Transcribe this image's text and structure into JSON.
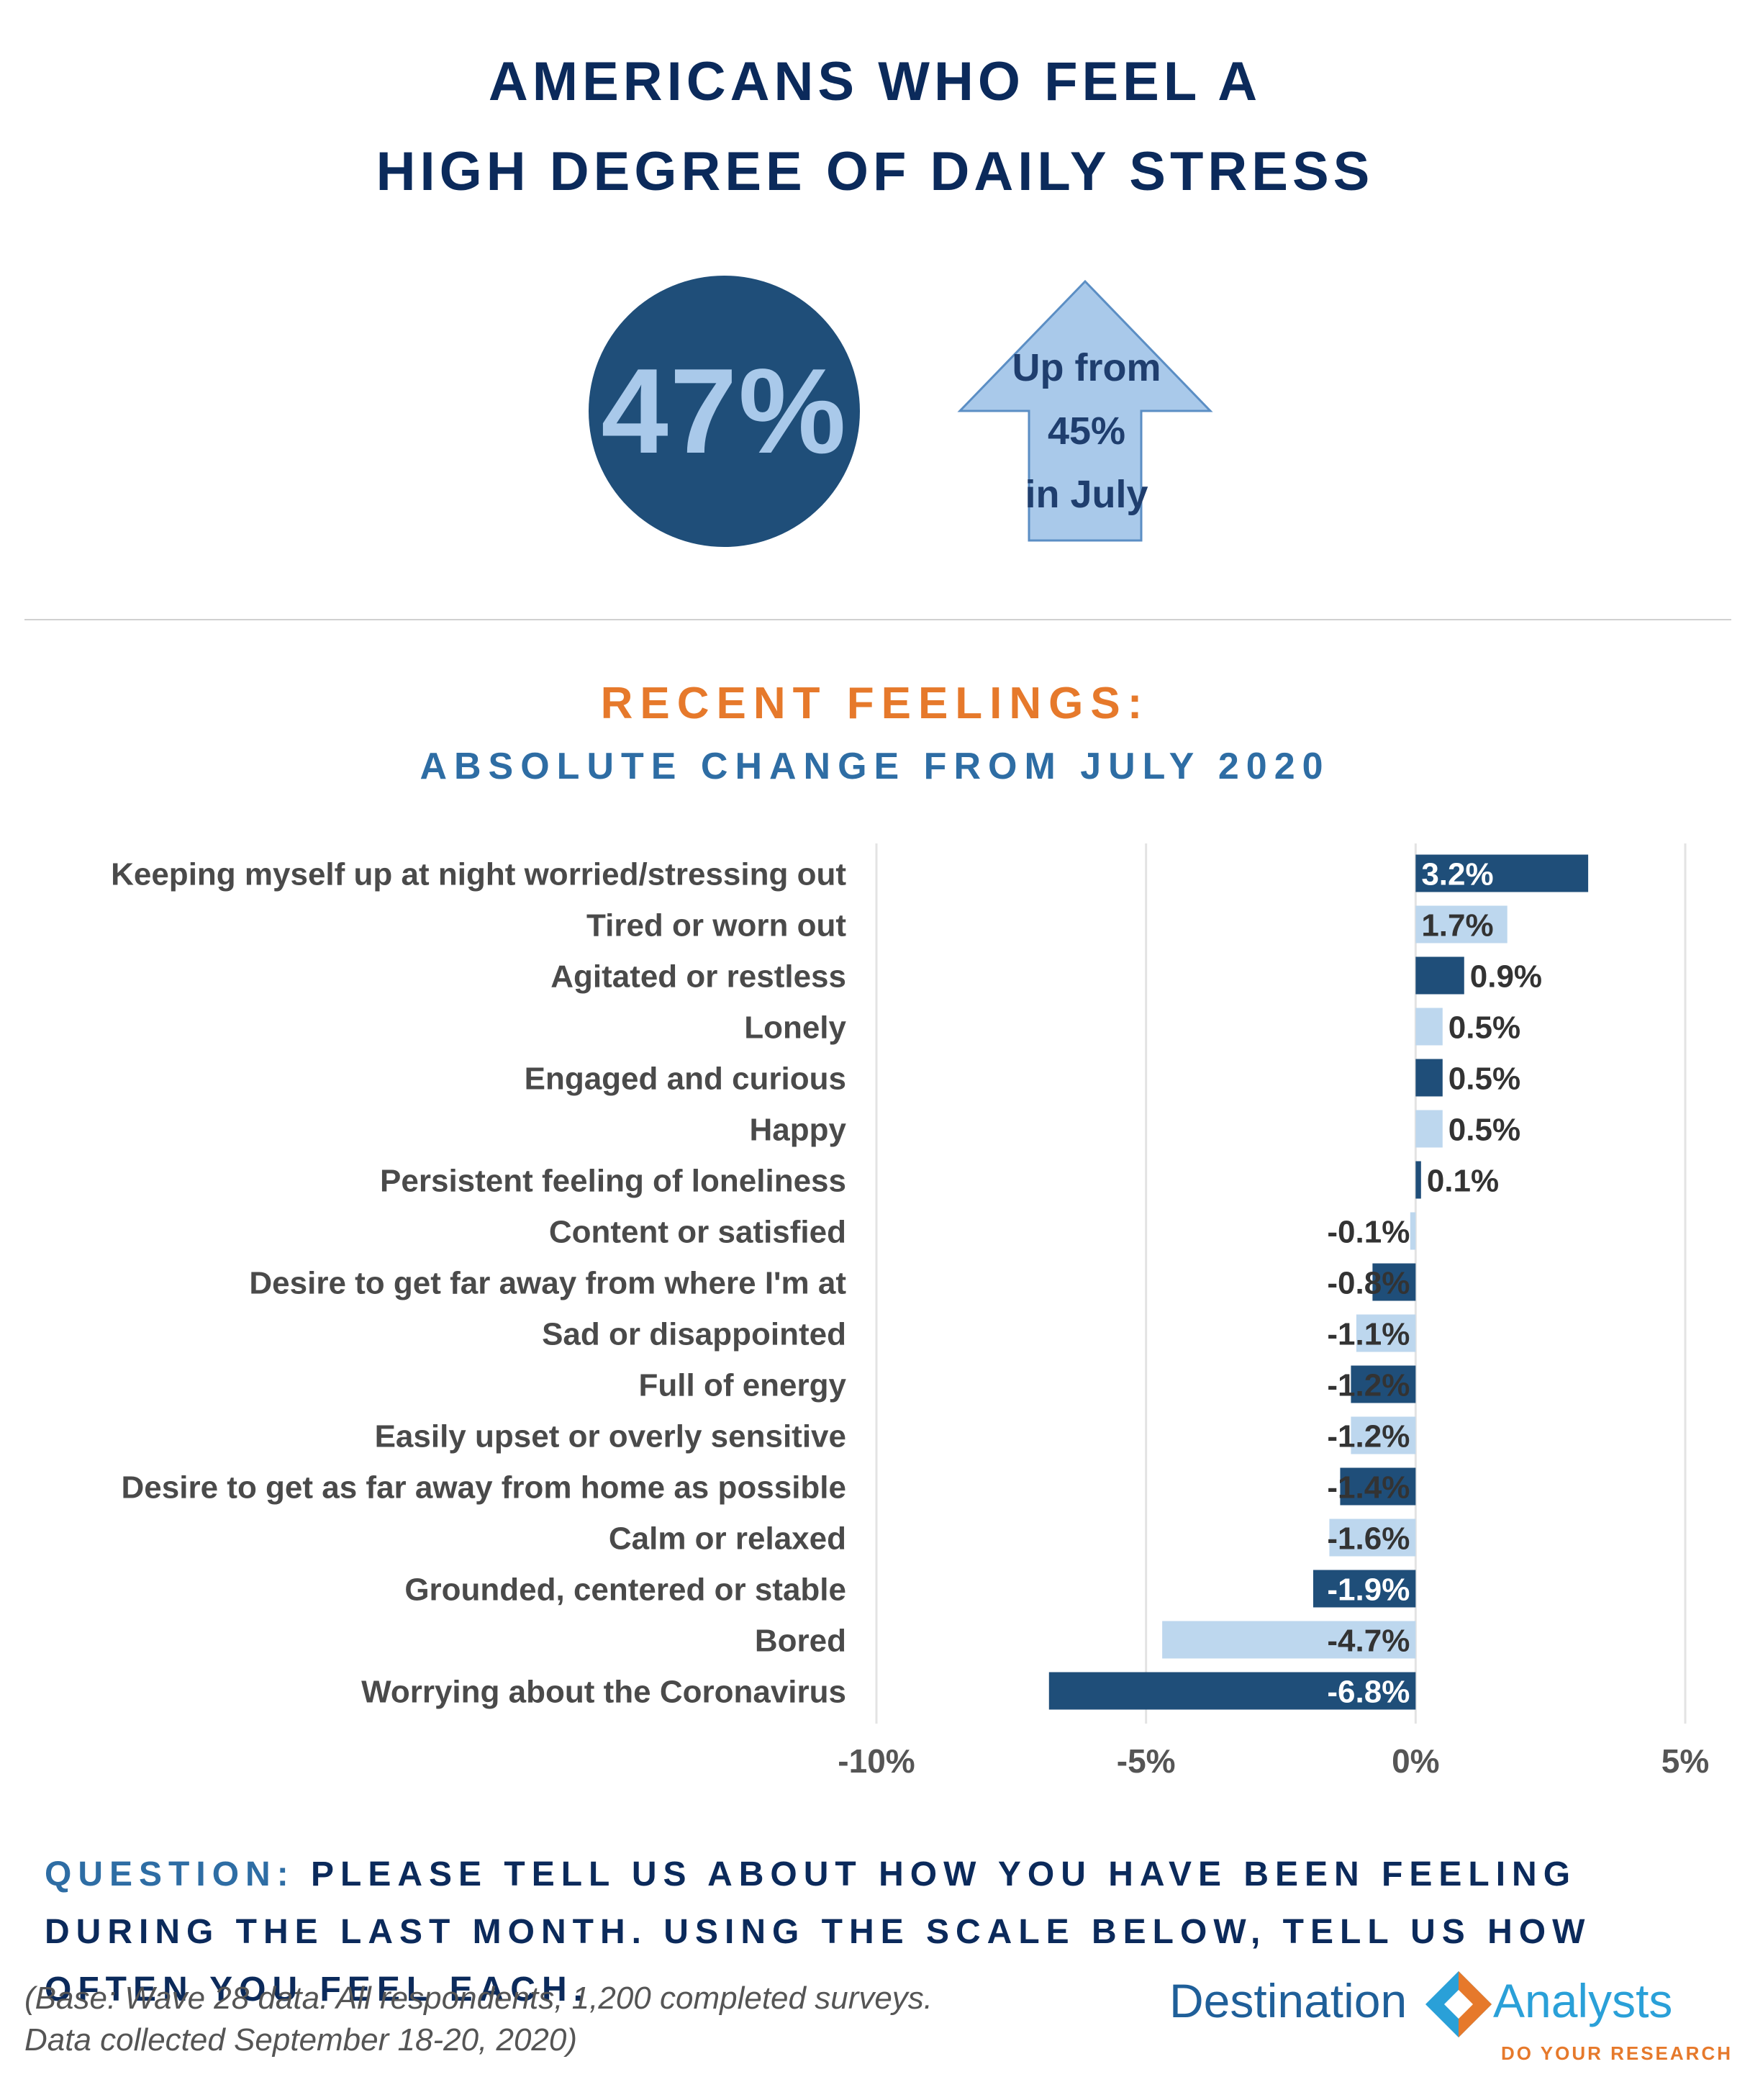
{
  "header": {
    "title_line1": "AMERICANS WHO FEEL A",
    "title_line2": "HIGH DEGREE OF DAILY STRESS"
  },
  "kpi": {
    "value": "47%",
    "arrow_line1": "Up from",
    "arrow_line2": "45%",
    "arrow_line3": "in July"
  },
  "section": {
    "heading": "RECENT FEELINGS:",
    "subheading": "ABSOLUTE CHANGE FROM JULY 2020"
  },
  "chart_data": {
    "type": "bar",
    "orientation": "horizontal",
    "categories": [
      "Keeping myself up at night worried/stressing out",
      "Tired or worn out",
      "Agitated or restless",
      "Lonely",
      "Engaged and curious",
      "Happy",
      "Persistent feeling of loneliness",
      "Content or satisfied",
      "Desire to get far away from where I'm at",
      "Sad or disappointed",
      "Full of energy",
      "Easily upset or overly sensitive",
      "Desire to get as far away from home as possible",
      "Calm or relaxed",
      "Grounded, centered or stable",
      "Bored",
      "Worrying about the Coronavirus"
    ],
    "values": [
      3.2,
      1.7,
      0.9,
      0.5,
      0.5,
      0.5,
      0.1,
      -0.1,
      -0.8,
      -1.1,
      -1.2,
      -1.2,
      -1.4,
      -1.6,
      -1.9,
      -4.7,
      -6.8
    ],
    "value_labels": [
      "3.2%",
      "1.7%",
      "0.9%",
      "0.5%",
      "0.5%",
      "0.5%",
      "0.1%",
      "-0.1%",
      "-0.8%",
      "-1.1%",
      "-1.2%",
      "-1.2%",
      "-1.4%",
      "-1.6%",
      "-1.9%",
      "-4.7%",
      "-6.8%"
    ],
    "xlim": [
      -10,
      5
    ],
    "xticks": [
      -10,
      -5,
      0,
      5
    ],
    "xtick_labels": [
      "-10%",
      "-5%",
      "0%",
      "5%"
    ],
    "grid": true,
    "colors": {
      "dark": "#1f4e79",
      "light": "#bdd7ee"
    }
  },
  "question": {
    "label": "QUESTION:",
    "text": "PLEASE TELL US ABOUT HOW YOU HAVE BEEN FEELING DURING THE LAST MONTH.  USING THE SCALE BELOW, TELL US HOW OFTEN YOU FEEL EACH."
  },
  "footnote": {
    "line1": "(Base: Wave 28 data. All respondents, 1,200 completed surveys.",
    "line2": "Data collected September 18-20, 2020)"
  },
  "logo": {
    "left": "Destination",
    "right": "Analysts",
    "tagline": "DO YOUR RESEARCH"
  },
  "colors": {
    "navy": "#0b2a5b",
    "orange": "#e6792b",
    "blue": "#2e6da4",
    "circle": "#1f4e79",
    "arrow": "#a9c9ea"
  }
}
